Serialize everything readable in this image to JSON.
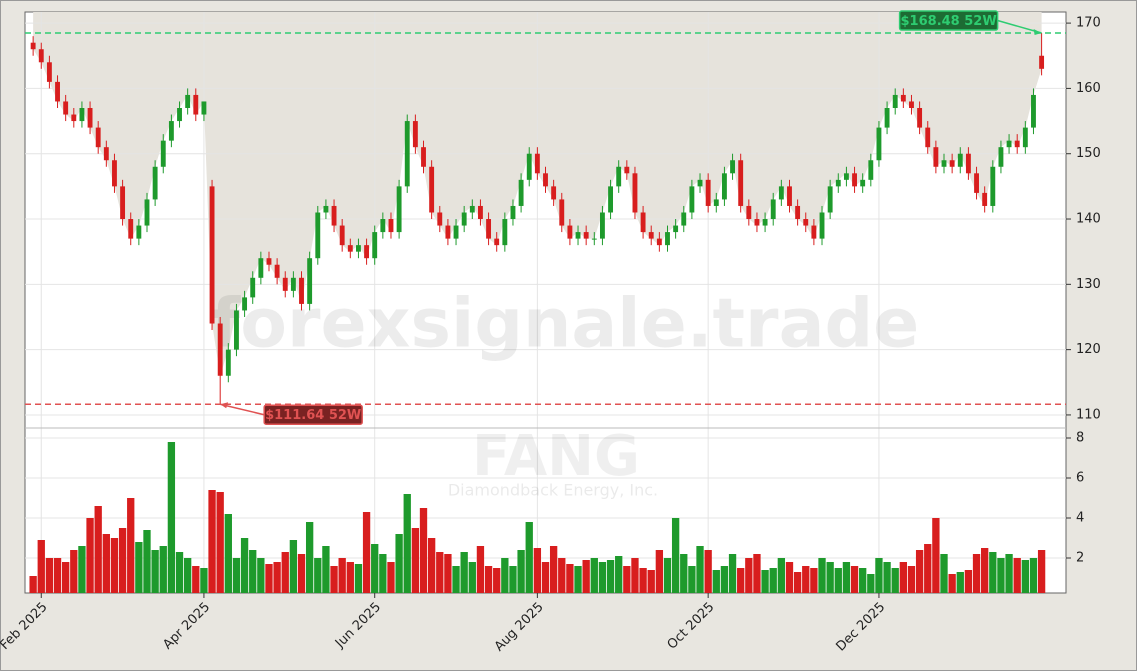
{
  "chart_data": {
    "type": "candlestick",
    "watermark": "forexsignale.trade",
    "ticker": "FANG",
    "company": "Diamondback Energy, Inc.",
    "up_color": "#1e9a2c",
    "down_color": "#d81e1e",
    "open": [
      167,
      166,
      164,
      161,
      158,
      156,
      155,
      157,
      154,
      151,
      149,
      145,
      140,
      137,
      139,
      143,
      148,
      152,
      155,
      157,
      159,
      156,
      145,
      124,
      116,
      120,
      126,
      128,
      131,
      134,
      133,
      131,
      129,
      131,
      127,
      134,
      141,
      142,
      139,
      136,
      135,
      136,
      134,
      138,
      140,
      138,
      145,
      155,
      151,
      148,
      141,
      139,
      137,
      139,
      141,
      142,
      140,
      137,
      136,
      140,
      142,
      146,
      150,
      147,
      145,
      143,
      139,
      137,
      138,
      137,
      137,
      141,
      145,
      148,
      147,
      141,
      138,
      137,
      136,
      138,
      139,
      141,
      145,
      146,
      142,
      143,
      147,
      149,
      142,
      140,
      139,
      140,
      143,
      145,
      142,
      140,
      139,
      137,
      141,
      145,
      146,
      147,
      145,
      146,
      149,
      154,
      157,
      159,
      158,
      157,
      154,
      151,
      148,
      149,
      148,
      150,
      147,
      144,
      142,
      148,
      151,
      152,
      151,
      154,
      165
    ],
    "high": [
      168,
      167,
      165,
      162,
      159,
      157,
      158,
      158,
      155,
      152,
      150,
      146,
      141,
      140,
      144,
      149,
      153,
      156,
      158,
      160,
      160,
      158,
      146,
      125,
      121,
      127,
      129,
      132,
      135,
      135,
      134,
      132,
      132,
      132,
      135,
      142,
      143,
      143,
      140,
      137,
      137,
      137,
      139,
      141,
      141,
      146,
      156,
      156,
      152,
      149,
      142,
      140,
      140,
      142,
      143,
      143,
      141,
      138,
      141,
      143,
      147,
      151,
      151,
      148,
      146,
      144,
      140,
      139,
      139,
      138,
      142,
      146,
      149,
      149,
      148,
      142,
      139,
      138,
      139,
      140,
      142,
      146,
      147,
      147,
      144,
      148,
      150,
      150,
      143,
      141,
      141,
      144,
      146,
      146,
      143,
      141,
      140,
      142,
      146,
      147,
      148,
      148,
      147,
      150,
      155,
      158,
      160,
      160,
      159,
      158,
      155,
      152,
      150,
      150,
      151,
      151,
      148,
      145,
      149,
      152,
      153,
      153,
      155,
      160,
      168.48
    ],
    "low": [
      165,
      163,
      160,
      157,
      155,
      154,
      154,
      153,
      150,
      148,
      144,
      139,
      136,
      136,
      138,
      142,
      147,
      151,
      154,
      156,
      155,
      155,
      123,
      111.64,
      115,
      119,
      125,
      127,
      130,
      132,
      130,
      128,
      128,
      126,
      126,
      133,
      140,
      138,
      135,
      134,
      134,
      133,
      133,
      137,
      137,
      137,
      144,
      150,
      147,
      140,
      138,
      136,
      136,
      138,
      140,
      139,
      136,
      135,
      135,
      139,
      141,
      145,
      146,
      144,
      142,
      138,
      136,
      136,
      136,
      136,
      136,
      140,
      144,
      146,
      140,
      137,
      136,
      135,
      135,
      137,
      138,
      140,
      144,
      141,
      141,
      142,
      146,
      141,
      139,
      138,
      138,
      139,
      142,
      141,
      139,
      138,
      136,
      136,
      140,
      144,
      145,
      144,
      144,
      145,
      148,
      153,
      156,
      157,
      156,
      153,
      150,
      147,
      147,
      147,
      147,
      146,
      143,
      141,
      141,
      147,
      150,
      150,
      150,
      153,
      162
    ],
    "close": [
      166,
      164,
      161,
      158,
      156,
      155,
      157,
      154,
      151,
      149,
      145,
      140,
      137,
      139,
      143,
      148,
      152,
      155,
      157,
      159,
      156,
      158,
      124,
      116,
      120,
      126,
      128,
      131,
      134,
      133,
      131,
      129,
      131,
      127,
      134,
      141,
      142,
      139,
      136,
      135,
      136,
      134,
      138,
      140,
      138,
      145,
      155,
      151,
      148,
      141,
      139,
      137,
      139,
      141,
      142,
      140,
      137,
      136,
      140,
      142,
      146,
      150,
      147,
      145,
      143,
      139,
      137,
      138,
      137,
      137,
      141,
      145,
      148,
      147,
      141,
      138,
      137,
      136,
      138,
      139,
      141,
      145,
      146,
      142,
      143,
      147,
      149,
      142,
      140,
      139,
      140,
      143,
      145,
      142,
      140,
      139,
      137,
      141,
      145,
      146,
      147,
      145,
      146,
      149,
      154,
      157,
      159,
      158,
      157,
      154,
      151,
      148,
      149,
      148,
      150,
      147,
      144,
      142,
      148,
      151,
      152,
      151,
      154,
      159,
      163
    ],
    "volume": [
      1.1,
      2.9,
      2.0,
      2.0,
      1.8,
      2.4,
      2.6,
      4.0,
      4.6,
      3.2,
      3.0,
      3.5,
      5.0,
      2.8,
      3.4,
      2.4,
      2.6,
      7.8,
      2.3,
      2.0,
      1.6,
      1.5,
      5.4,
      5.3,
      4.2,
      2.0,
      3.0,
      2.4,
      2.0,
      1.7,
      1.8,
      2.3,
      2.9,
      2.2,
      3.8,
      2.0,
      2.6,
      1.6,
      2.0,
      1.8,
      1.7,
      4.3,
      2.7,
      2.2,
      1.8,
      3.2,
      5.2,
      3.5,
      4.5,
      3.0,
      2.3,
      2.2,
      1.6,
      2.3,
      1.8,
      2.6,
      1.6,
      1.5,
      2.0,
      1.6,
      2.4,
      3.8,
      2.5,
      1.8,
      2.6,
      2.0,
      1.7,
      1.6,
      1.9,
      2.0,
      1.8,
      1.9,
      2.1,
      1.6,
      2.0,
      1.5,
      1.4,
      2.4,
      2.0,
      4.0,
      2.2,
      1.6,
      2.6,
      2.4,
      1.4,
      1.6,
      2.2,
      1.5,
      2.0,
      2.2,
      1.4,
      1.5,
      2.0,
      1.8,
      1.3,
      1.6,
      1.5,
      2.0,
      1.8,
      1.5,
      1.8,
      1.6,
      1.5,
      1.2,
      2.0,
      1.8,
      1.5,
      1.8,
      1.6,
      2.4,
      2.7,
      4.0,
      2.2,
      1.2,
      1.3,
      1.4,
      2.2,
      2.5,
      2.3,
      2.0,
      2.2,
      2.0,
      1.9,
      2.0,
      2.4
    ],
    "xlim": [
      -1,
      127
    ],
    "xticks": [
      {
        "value": 1,
        "label": "Feb 2025"
      },
      {
        "value": 21,
        "label": "Apr 2025"
      },
      {
        "value": 42,
        "label": "Jun 2025"
      },
      {
        "value": 62,
        "label": "Aug 2025"
      },
      {
        "value": 83,
        "label": "Oct 2025"
      },
      {
        "value": 104,
        "label": "Dec 2025"
      }
    ],
    "ylim": [
      108,
      171.7
    ],
    "yticks": [
      110,
      120,
      130,
      140,
      150,
      160,
      170
    ],
    "volume_ylim": [
      0.25,
      8.5
    ],
    "volume_yticks": [
      2,
      4,
      6,
      8
    ],
    "grid": true,
    "annotations": [
      {
        "value": 168.48,
        "label": "$168.48 52W",
        "color": "#2ecc71"
      },
      {
        "value": 111.64,
        "label": "$111.64 52W",
        "color": "#e05252"
      }
    ]
  }
}
